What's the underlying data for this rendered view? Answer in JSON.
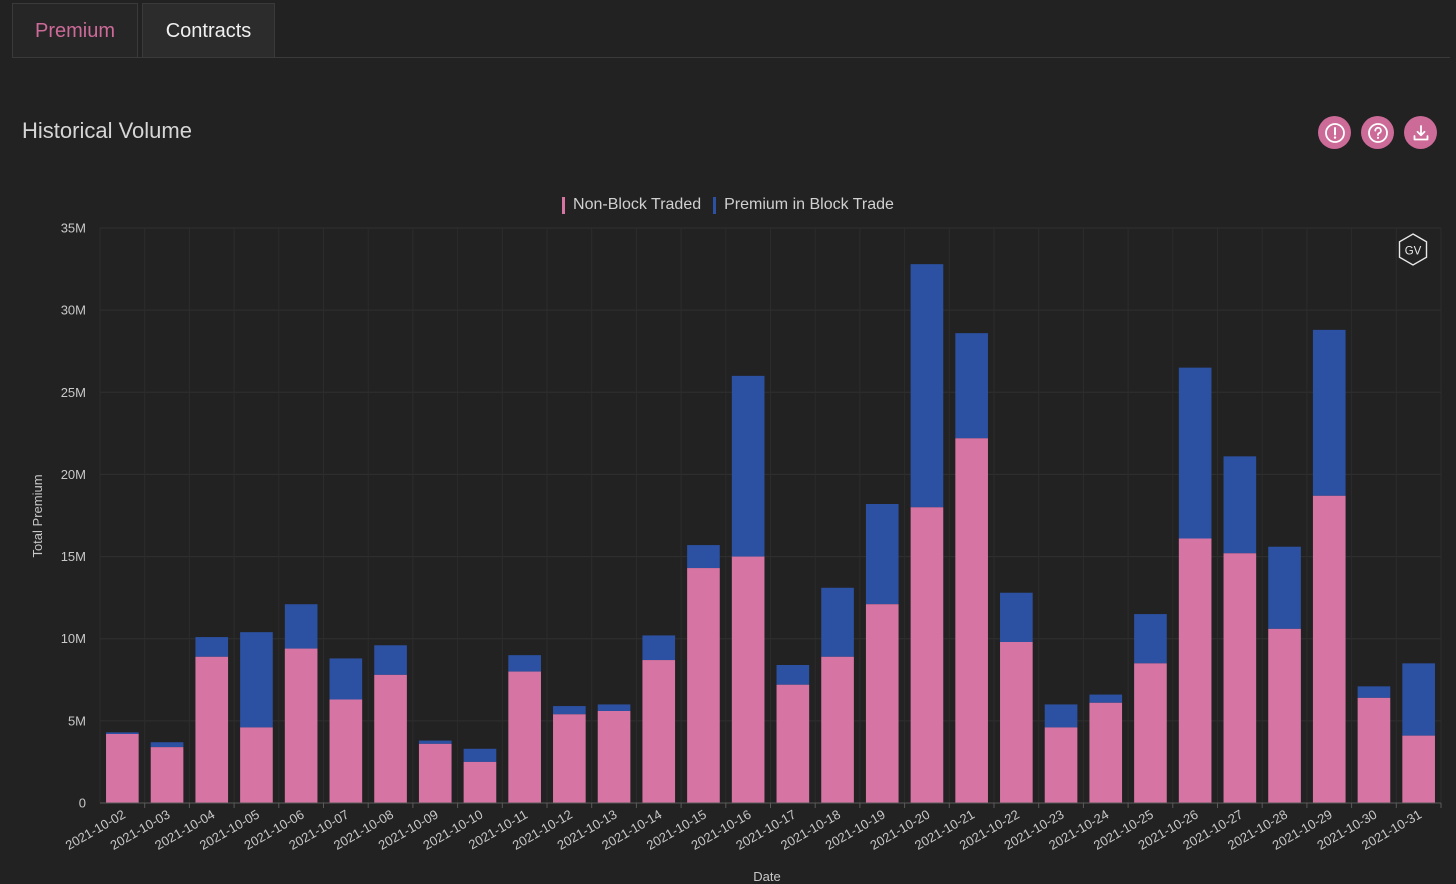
{
  "tabs": [
    {
      "label": "Premium",
      "active": true
    },
    {
      "label": "Contracts",
      "active": false
    }
  ],
  "card": {
    "title": "Historical Volume"
  },
  "actions": [
    {
      "icon": "alert-icon"
    },
    {
      "icon": "help-icon"
    },
    {
      "icon": "download-icon"
    }
  ],
  "watermark": "GV",
  "colors": {
    "accent": "#cc6a98",
    "non_block": "#d675a3",
    "block": "#2c51a3",
    "background": "#222222"
  },
  "chart_data": {
    "type": "bar",
    "stacked": true,
    "title": "",
    "xlabel": "Date",
    "ylabel": "Total Premium",
    "ylim": [
      0,
      35000000
    ],
    "yticks": [
      {
        "value": 0,
        "label": "0"
      },
      {
        "value": 5000000,
        "label": "5M"
      },
      {
        "value": 10000000,
        "label": "10M"
      },
      {
        "value": 15000000,
        "label": "15M"
      },
      {
        "value": 20000000,
        "label": "20M"
      },
      {
        "value": 25000000,
        "label": "25M"
      },
      {
        "value": 30000000,
        "label": "30M"
      },
      {
        "value": 35000000,
        "label": "35M"
      }
    ],
    "legend_position": "top-center",
    "grid": true,
    "categories": [
      "2021-10-02",
      "2021-10-03",
      "2021-10-04",
      "2021-10-05",
      "2021-10-06",
      "2021-10-07",
      "2021-10-08",
      "2021-10-09",
      "2021-10-10",
      "2021-10-11",
      "2021-10-12",
      "2021-10-13",
      "2021-10-14",
      "2021-10-15",
      "2021-10-16",
      "2021-10-17",
      "2021-10-18",
      "2021-10-19",
      "2021-10-20",
      "2021-10-21",
      "2021-10-22",
      "2021-10-23",
      "2021-10-24",
      "2021-10-25",
      "2021-10-26",
      "2021-10-27",
      "2021-10-28",
      "2021-10-29",
      "2021-10-30",
      "2021-10-31"
    ],
    "series": [
      {
        "name": "Non-Block Traded",
        "color": "#d675a3",
        "values": [
          4200000,
          3400000,
          8900000,
          4600000,
          9400000,
          6300000,
          7800000,
          3600000,
          2500000,
          8000000,
          5400000,
          5600000,
          8700000,
          14300000,
          15000000,
          7200000,
          8900000,
          12100000,
          18000000,
          22200000,
          9800000,
          4600000,
          6100000,
          8500000,
          16100000,
          15200000,
          10600000,
          18700000,
          6400000,
          4100000
        ]
      },
      {
        "name": "Premium in Block Trade",
        "color": "#2c51a3",
        "values": [
          100000,
          300000,
          1200000,
          5800000,
          2700000,
          2500000,
          1800000,
          200000,
          800000,
          1000000,
          500000,
          400000,
          1500000,
          1400000,
          11000000,
          1200000,
          4200000,
          6100000,
          14800000,
          6400000,
          3000000,
          1400000,
          500000,
          3000000,
          10400000,
          5900000,
          5000000,
          10100000,
          700000,
          4400000
        ]
      }
    ]
  }
}
